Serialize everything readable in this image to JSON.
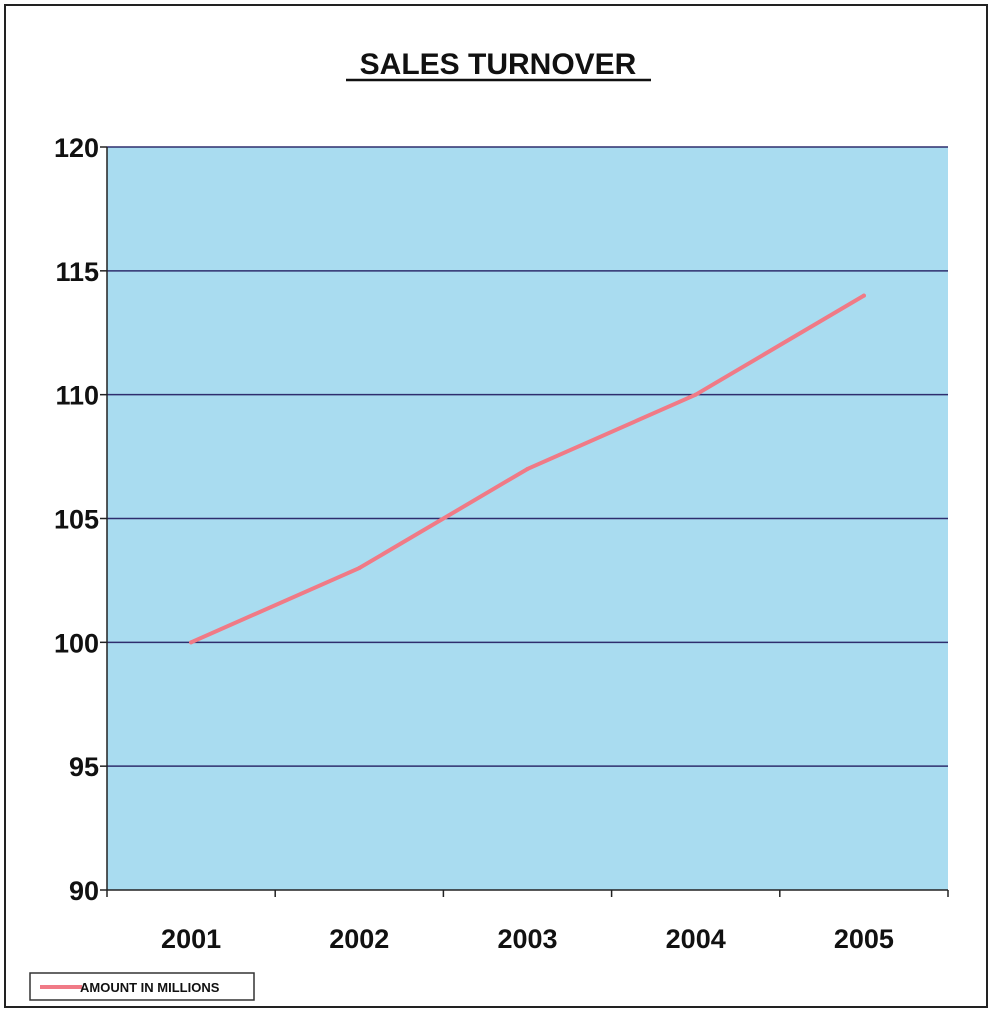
{
  "chart_data": {
    "type": "line",
    "title": "SALES TURNOVER",
    "xlabel": "",
    "ylabel": "",
    "categories": [
      "2001",
      "2002",
      "2003",
      "2004",
      "2005"
    ],
    "series": [
      {
        "name": "AMOUNT IN MILLIONS",
        "values": [
          100,
          103,
          107,
          110,
          114
        ]
      }
    ],
    "ylim": [
      90,
      120
    ],
    "yticks": [
      90,
      95,
      100,
      105,
      110,
      115,
      120
    ],
    "grid": "horizontal",
    "legend": "bottom-left",
    "colors": {
      "plot_background": "#a9dcf0",
      "gridline": "#2e2e6e",
      "line": "#f07a86",
      "axis": "#222222"
    }
  }
}
